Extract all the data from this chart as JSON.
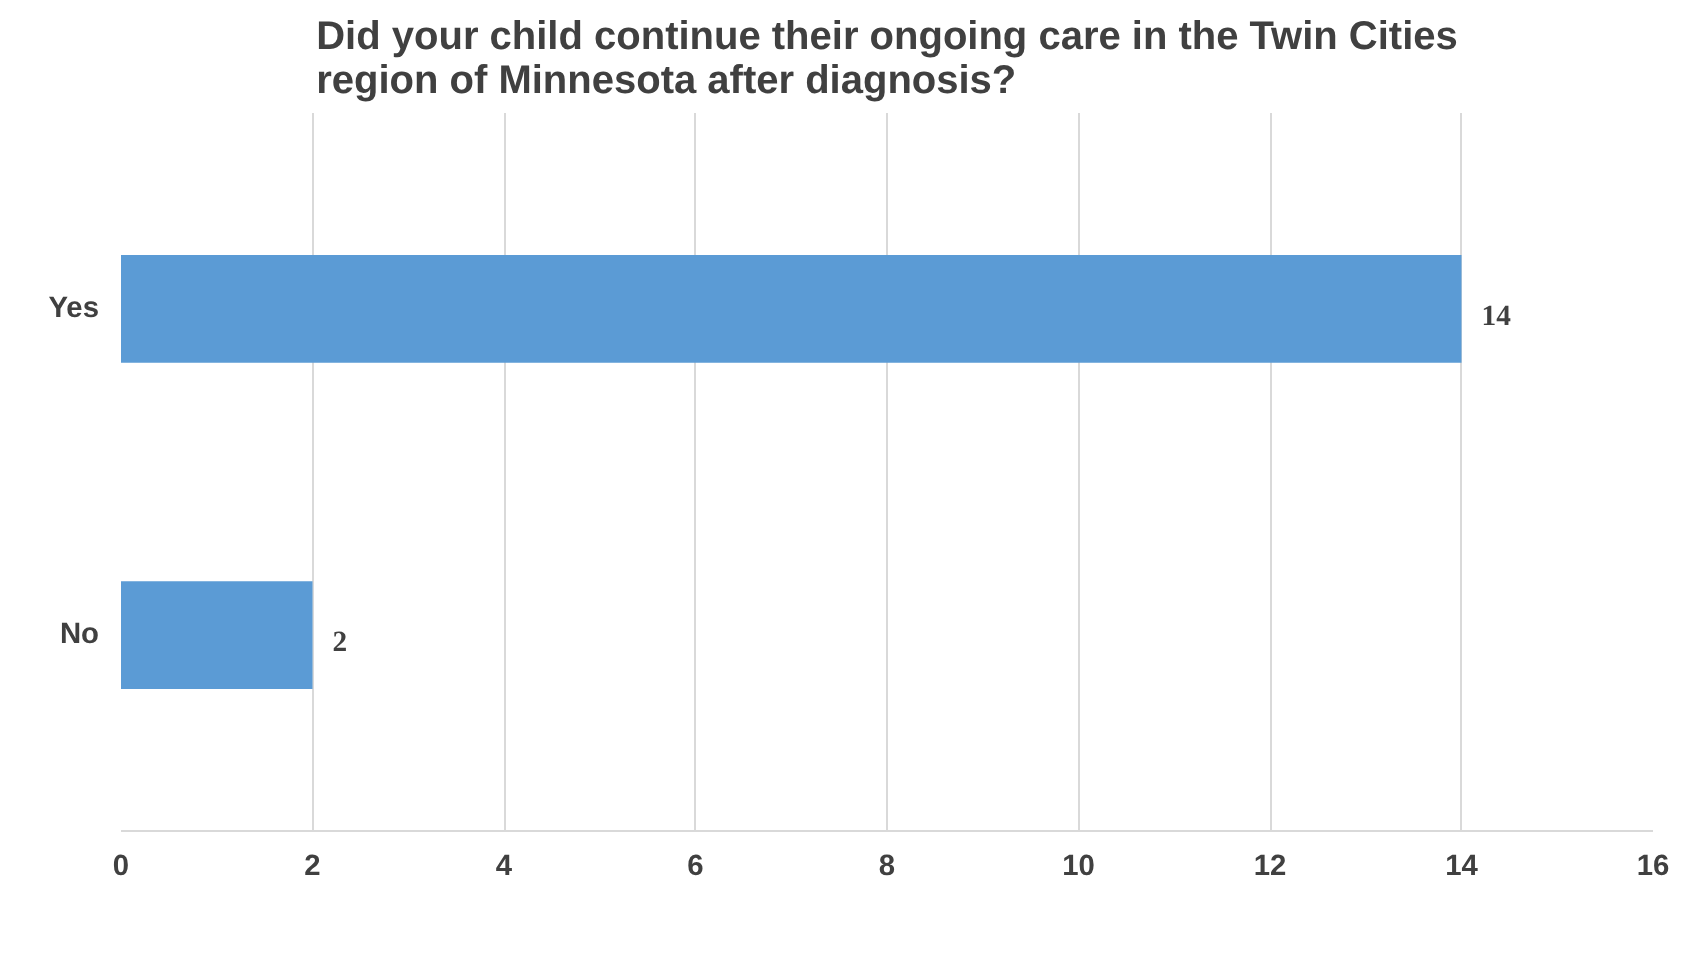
{
  "chart_data": {
    "type": "bar",
    "orientation": "horizontal",
    "title": "Did your child continue their ongoing care in the Twin Cities\nregion of Minnesota after diagnosis?",
    "categories": [
      "Yes",
      "No"
    ],
    "values": [
      14,
      2
    ],
    "color": "#5b9bd5",
    "xlim": [
      0,
      16
    ],
    "xticks": [
      0,
      2,
      4,
      6,
      8,
      10,
      12,
      14,
      16
    ],
    "grid": "x",
    "data_labels": true
  }
}
